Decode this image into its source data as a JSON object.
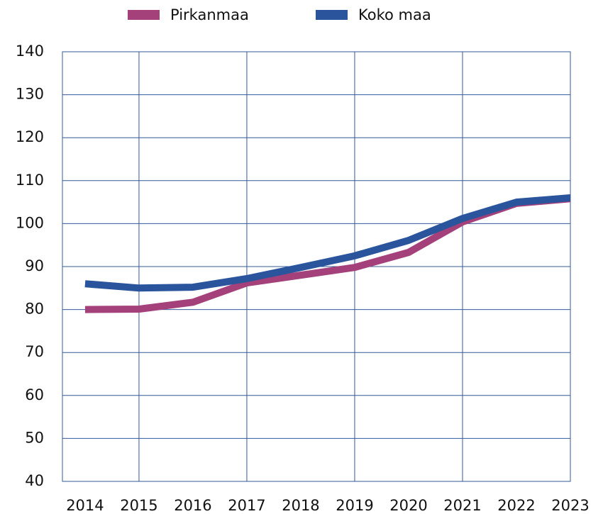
{
  "chart_data": {
    "type": "line",
    "x": [
      2014,
      2015,
      2016,
      2017,
      2018,
      2019,
      2020,
      2021,
      2022,
      2023
    ],
    "xlim": [
      2013.58,
      2023
    ],
    "xticks": [
      2014,
      2015,
      2016,
      2017,
      2018,
      2019,
      2020,
      2021,
      2022,
      2023
    ],
    "series": [
      {
        "name": "Pirkanmaa",
        "color": "#a4407a",
        "values": [
          80.0,
          80.1,
          81.7,
          86.2,
          88.0,
          89.8,
          93.3,
          100.4,
          104.7,
          105.8
        ]
      },
      {
        "name": "Koko maa",
        "color": "#2a559c",
        "values": [
          86.0,
          85.0,
          85.2,
          87.2,
          89.8,
          92.5,
          96.1,
          101.2,
          105.0,
          106.0
        ]
      }
    ],
    "ylim": [
      40,
      140
    ],
    "yticks": [
      40,
      50,
      60,
      70,
      80,
      90,
      100,
      110,
      120,
      130,
      140
    ],
    "grid": true
  }
}
